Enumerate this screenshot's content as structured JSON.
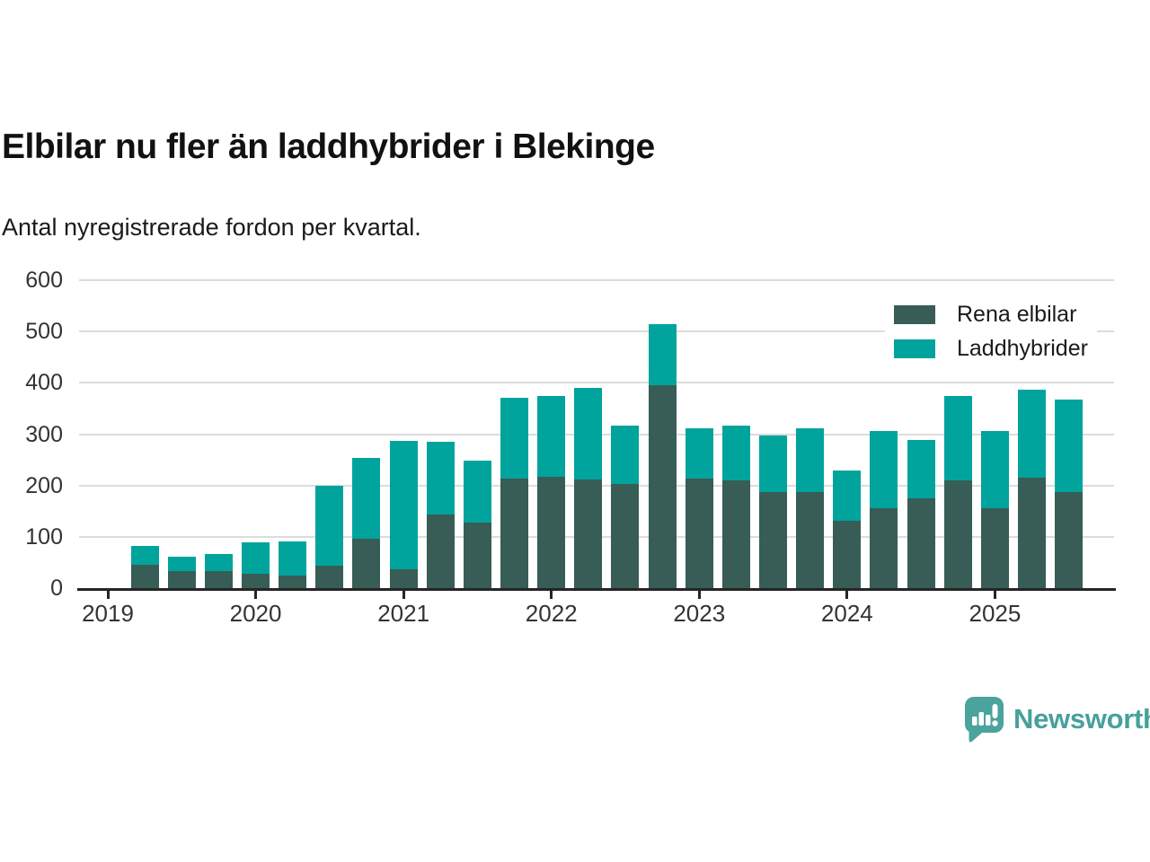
{
  "header": {
    "title": "Elbilar nu fler än laddhybrider i Blekinge",
    "subtitle": "Antal nyregistrerade fordon per kvartal."
  },
  "footer": {
    "brand": "Newsworthy",
    "brand_color": "#47a09b"
  },
  "chart_data": {
    "type": "bar",
    "stacked": true,
    "title": "Elbilar nu fler än laddhybrider i Blekinge",
    "subtitle": "Antal nyregistrerade fordon per kvartal.",
    "x": [
      "2019 Q2",
      "2019 Q3",
      "2019 Q4",
      "2020 Q1",
      "2020 Q2",
      "2020 Q3",
      "2020 Q4",
      "2021 Q1",
      "2021 Q2",
      "2021 Q3",
      "2021 Q4",
      "2022 Q1",
      "2022 Q2",
      "2022 Q3",
      "2022 Q4",
      "2023 Q1",
      "2023 Q2",
      "2023 Q3",
      "2023 Q4",
      "2024 Q1",
      "2024 Q2",
      "2024 Q3",
      "2024 Q4",
      "2025 Q1",
      "2025 Q2",
      "2025 Q3"
    ],
    "series": [
      {
        "name": "Rena elbilar",
        "color": "#385c56",
        "values": [
          45,
          33,
          33,
          28,
          24,
          44,
          96,
          36,
          144,
          128,
          214,
          217,
          211,
          203,
          396,
          214,
          210,
          187,
          188,
          132,
          156,
          175,
          210,
          155,
          215,
          187
        ]
      },
      {
        "name": "Laddhybrider",
        "color": "#00a49c",
        "values": [
          38,
          28,
          34,
          62,
          67,
          156,
          158,
          251,
          141,
          120,
          156,
          158,
          179,
          114,
          119,
          98,
          107,
          111,
          124,
          97,
          150,
          114,
          165,
          151,
          172,
          180
        ]
      }
    ],
    "ylim": [
      0,
      600
    ],
    "ytick_step": 100,
    "yticks": [
      "0",
      "100",
      "200",
      "300",
      "400",
      "500",
      "600"
    ],
    "xticks_shown": [
      "2019",
      "2020",
      "2021",
      "2022",
      "2023",
      "2024",
      "2025"
    ],
    "grid": "horizontal",
    "legend_position": "top-right"
  }
}
